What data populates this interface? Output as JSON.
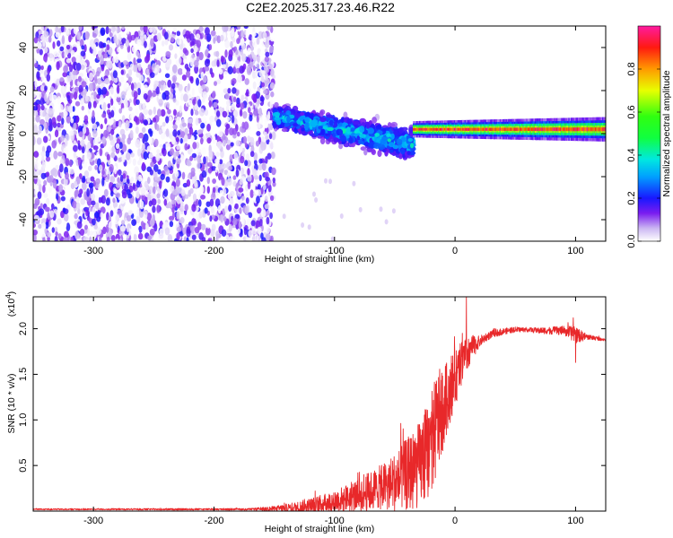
{
  "title": "C2E2.2025.317.23.46.R22",
  "chart_data": [
    {
      "type": "heatmap",
      "name": "spectrogram",
      "xlabel": "Height of straight line (km)",
      "ylabel": "Frequency (Hz)",
      "xlim": [
        -350,
        125
      ],
      "ylim": [
        -50,
        50
      ],
      "xticks": [
        -300,
        -200,
        -100,
        0,
        100
      ],
      "xtick_labels": [
        "-300",
        "-200",
        "-100",
        "0",
        "100"
      ],
      "yticks": [
        -40,
        -20,
        0,
        20,
        40
      ],
      "ytick_labels": [
        "-40",
        "-20",
        "0",
        "20",
        "40"
      ],
      "grid": false,
      "description_regions": [
        {
          "x": [
            -350,
            -150
          ],
          "freq": [
            -50,
            50
          ],
          "amplitude_range": [
            0.0,
            0.2
          ],
          "pattern": "noise"
        },
        {
          "x": [
            -150,
            -35
          ],
          "freq_center": [
            8,
            -5
          ],
          "freq_halfwidth": [
            8,
            12
          ],
          "amplitude_range": [
            0.15,
            0.4
          ],
          "pattern": "diffuse band"
        },
        {
          "x": [
            -35,
            125
          ],
          "freq_center": [
            2,
            2
          ],
          "freq_halfwidth": [
            2,
            3
          ],
          "amplitude_range": [
            0.4,
            1.0
          ],
          "pattern": "narrow line"
        }
      ]
    },
    {
      "type": "colorbar",
      "name": "colorbar",
      "label": "Normalized spectral amplitude",
      "range": [
        0,
        1
      ],
      "ticks": [
        0.0,
        0.2,
        0.4,
        0.6,
        0.8
      ],
      "tick_labels": [
        "0.0",
        "0.2",
        "0.4",
        "0.6",
        "0.8"
      ],
      "stops": [
        {
          "v": 0.0,
          "color": "#ffffff"
        },
        {
          "v": 0.06,
          "color": "#cbb6f2"
        },
        {
          "v": 0.13,
          "color": "#7a1cf0"
        },
        {
          "v": 0.2,
          "color": "#1818ff"
        },
        {
          "v": 0.3,
          "color": "#00a0ff"
        },
        {
          "v": 0.38,
          "color": "#00e8e0"
        },
        {
          "v": 0.48,
          "color": "#10ff40"
        },
        {
          "v": 0.58,
          "color": "#30ff10"
        },
        {
          "v": 0.7,
          "color": "#e8ff00"
        },
        {
          "v": 0.8,
          "color": "#ff9a00"
        },
        {
          "v": 0.9,
          "color": "#ff1a10"
        },
        {
          "v": 1.0,
          "color": "#ff1aa0"
        }
      ]
    },
    {
      "type": "line",
      "name": "snr",
      "xlabel": "Height of straight line (km)",
      "ylabel": "SNR (10 * v/v)",
      "y_multiplier_label": "(x10",
      "y_multiplier_exp": "4",
      "y_multiplier_close": ")",
      "xlim": [
        -350,
        125
      ],
      "ylim": [
        0,
        2.35
      ],
      "xticks": [
        -300,
        -200,
        -100,
        0,
        100
      ],
      "xtick_labels": [
        "-300",
        "-200",
        "-100",
        "0",
        "100"
      ],
      "yticks": [
        0.5,
        1.0,
        1.5,
        2.0
      ],
      "ytick_labels": [
        "0.5",
        "1.0",
        "1.5",
        "2.0"
      ],
      "line_color": "#e8282a",
      "envelope": {
        "x": [
          -350,
          -170,
          -150,
          -130,
          -110,
          -90,
          -70,
          -50,
          -40,
          -30,
          -20,
          -15,
          -12,
          -5,
          0,
          5,
          10,
          15,
          20,
          25,
          30,
          40,
          50,
          60,
          70,
          80,
          90,
          95,
          100,
          110,
          125
        ],
        "y": [
          0.02,
          0.02,
          0.025,
          0.04,
          0.08,
          0.14,
          0.22,
          0.32,
          0.4,
          0.5,
          0.72,
          0.95,
          1.05,
          1.3,
          1.45,
          1.6,
          1.72,
          1.8,
          1.86,
          1.9,
          1.94,
          1.97,
          1.99,
          1.99,
          1.98,
          1.98,
          1.98,
          1.96,
          1.93,
          1.91,
          1.88
        ]
      },
      "noise": {
        "x": [
          -350,
          -170,
          -150,
          -100,
          -60,
          -40,
          -20,
          -15,
          -10,
          0,
          10,
          20,
          30,
          60,
          90,
          100,
          110,
          125
        ],
        "amp": [
          0.008,
          0.01,
          0.03,
          0.12,
          0.25,
          0.4,
          0.55,
          0.6,
          0.45,
          0.3,
          0.2,
          0.06,
          0.04,
          0.025,
          0.05,
          0.09,
          0.03,
          0.015
        ]
      },
      "spikes": [
        {
          "x": 9.5,
          "y": 2.35
        },
        {
          "x": 6,
          "y": 1.95
        },
        {
          "x": 98,
          "y": 2.12
        },
        {
          "x": 100,
          "y": 1.63
        },
        {
          "x": -13,
          "y": 1.25
        },
        {
          "x": -3,
          "y": 1.7
        }
      ]
    }
  ]
}
